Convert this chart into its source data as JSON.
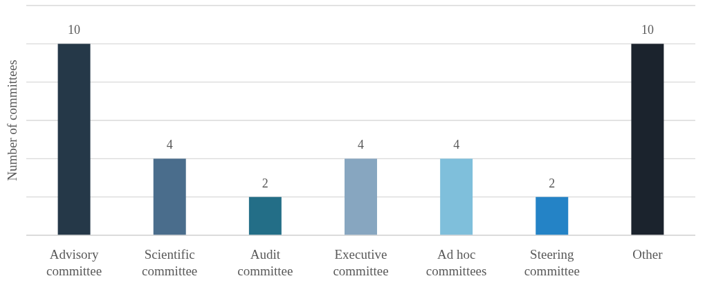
{
  "chart_data": {
    "type": "bar",
    "ylabel": "Number of committees",
    "categories": [
      "Advisory committee",
      "Scientific committee",
      "Audit committee",
      "Executive committee",
      "Ad hoc committees",
      "Steering committee",
      "Other"
    ],
    "values": [
      10,
      4,
      2,
      4,
      4,
      2,
      10
    ],
    "colors": [
      "#253848",
      "#4a6d8c",
      "#236e87",
      "#87a6c0",
      "#7fbfdb",
      "#2483c6",
      "#1b232d"
    ],
    "ylim": [
      0,
      12
    ],
    "yticks": [
      {
        "value": 0,
        "label": null
      },
      {
        "value": 2,
        "label": null
      },
      {
        "value": 4,
        "label": null
      },
      {
        "value": 6,
        "label": null
      },
      {
        "value": 8,
        "label": null
      },
      {
        "value": 10,
        "label": null
      },
      {
        "value": 12,
        "label": null
      }
    ],
    "tick_labels": "x",
    "grid": "y",
    "data_labels": true
  }
}
